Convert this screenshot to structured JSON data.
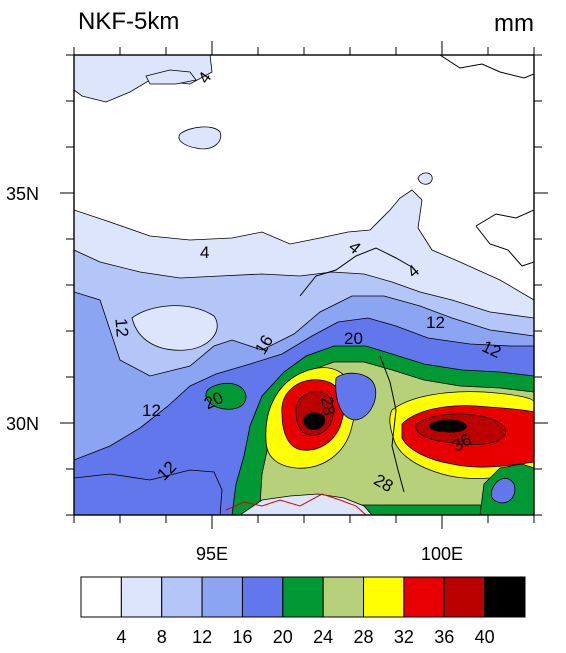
{
  "title": "NKF-5km",
  "units": "mm",
  "y_ticks": [
    "35N",
    "30N"
  ],
  "x_ticks": [
    "95E",
    "100E"
  ],
  "contour_labels": [
    "4",
    "4",
    "4",
    "4",
    "12",
    "12",
    "12",
    "12",
    "12",
    "16",
    "20",
    "20",
    "28",
    "28",
    "36"
  ],
  "colorbar": {
    "levels": [
      "4",
      "8",
      "12",
      "16",
      "20",
      "24",
      "28",
      "32",
      "36",
      "40"
    ],
    "colors": [
      "#ffffff",
      "#dce5fb",
      "#b3c6f7",
      "#8ca5f2",
      "#6277ec",
      "#019934",
      "#b7d07a",
      "#ffff00",
      "#e80000",
      "#bb0000",
      "#000000"
    ]
  }
}
